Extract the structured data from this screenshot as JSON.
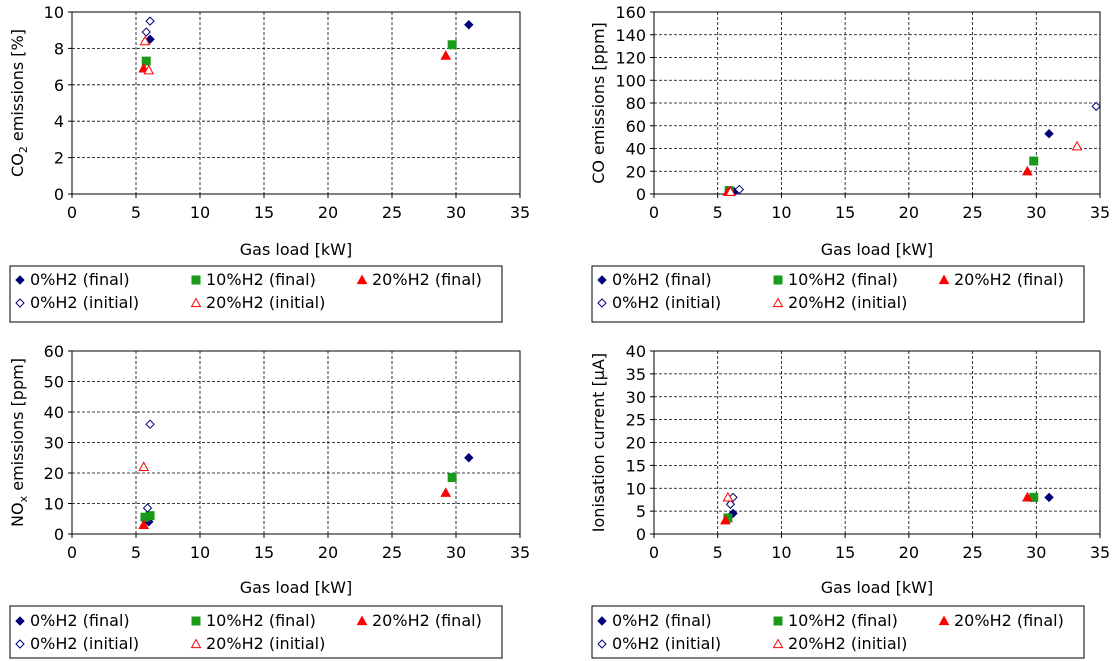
{
  "chart_data": [
    {
      "type": "scatter",
      "title": "",
      "xlabel": "Gas load [kW]",
      "ylabel_parts": [
        [
          "CO",
          ""
        ],
        [
          "2",
          "sub"
        ],
        [
          " emissions [%]",
          ""
        ]
      ],
      "xlim": [
        0,
        35
      ],
      "ylim": [
        0,
        10
      ],
      "xticks": [
        0,
        5,
        10,
        15,
        20,
        25,
        30,
        35
      ],
      "yticks": [
        0,
        2,
        4,
        6,
        8,
        10
      ],
      "grid": true,
      "legend_position": "bottom",
      "series": [
        {
          "name": "0%H2 (final)",
          "marker": "diamond",
          "filled": true,
          "color": "#00007a",
          "points": [
            [
              6.1,
              8.5
            ],
            [
              31.0,
              9.3
            ]
          ]
        },
        {
          "name": "10%H2 (final)",
          "marker": "square",
          "filled": true,
          "color": "#1a9a1a",
          "points": [
            [
              5.8,
              7.3
            ],
            [
              29.7,
              8.2
            ]
          ]
        },
        {
          "name": "20%H2 (final)",
          "marker": "triangle",
          "filled": true,
          "color": "#ff0000",
          "points": [
            [
              5.6,
              6.9
            ],
            [
              29.2,
              7.6
            ]
          ]
        },
        {
          "name": "0%H2 (initial)",
          "marker": "diamond",
          "filled": false,
          "color": "#00007a",
          "points": [
            [
              5.8,
              8.9
            ],
            [
              6.1,
              9.5
            ]
          ]
        },
        {
          "name": "20%H2 (initial)",
          "marker": "triangle",
          "filled": false,
          "color": "#ff0000",
          "points": [
            [
              5.7,
              8.4
            ],
            [
              6.0,
              6.8
            ]
          ]
        }
      ]
    },
    {
      "type": "scatter",
      "title": "",
      "xlabel": "Gas load [kW]",
      "ylabel_parts": [
        [
          "CO emissions [ppm]",
          ""
        ]
      ],
      "xlim": [
        0,
        35
      ],
      "ylim": [
        0,
        160
      ],
      "xticks": [
        0,
        5,
        10,
        15,
        20,
        25,
        30,
        35
      ],
      "yticks": [
        0,
        20,
        40,
        60,
        80,
        100,
        120,
        140,
        160
      ],
      "grid": true,
      "legend_position": "bottom",
      "series": [
        {
          "name": "0%H2 (final)",
          "marker": "diamond",
          "filled": true,
          "color": "#00007a",
          "points": [
            [
              6.3,
              2
            ],
            [
              31.0,
              53
            ]
          ]
        },
        {
          "name": "10%H2 (final)",
          "marker": "square",
          "filled": true,
          "color": "#1a9a1a",
          "points": [
            [
              5.9,
              3
            ],
            [
              29.8,
              29
            ]
          ]
        },
        {
          "name": "20%H2 (final)",
          "marker": "triangle",
          "filled": true,
          "color": "#ff0000",
          "points": [
            [
              5.8,
              2
            ],
            [
              29.3,
              20
            ]
          ]
        },
        {
          "name": "0%H2 (initial)",
          "marker": "diamond",
          "filled": false,
          "color": "#00007a",
          "points": [
            [
              6.7,
              4
            ],
            [
              34.7,
              77
            ]
          ]
        },
        {
          "name": "20%H2 (initial)",
          "marker": "triangle",
          "filled": false,
          "color": "#ff0000",
          "points": [
            [
              6.0,
              2
            ],
            [
              33.2,
              42
            ]
          ]
        }
      ]
    },
    {
      "type": "scatter",
      "title": "",
      "xlabel": "Gas load [kW]",
      "ylabel_parts": [
        [
          "NO",
          ""
        ],
        [
          "x",
          "sub"
        ],
        [
          " emissions [ppm]",
          ""
        ]
      ],
      "xlim": [
        0,
        35
      ],
      "ylim": [
        0,
        60
      ],
      "xticks": [
        0,
        5,
        10,
        15,
        20,
        25,
        30,
        35
      ],
      "yticks": [
        0,
        10,
        20,
        30,
        40,
        50,
        60
      ],
      "grid": true,
      "legend_position": "bottom",
      "series": [
        {
          "name": "0%H2 (final)",
          "marker": "diamond",
          "filled": true,
          "color": "#00007a",
          "points": [
            [
              6.0,
              4
            ],
            [
              31.0,
              25
            ]
          ]
        },
        {
          "name": "10%H2 (final)",
          "marker": "square",
          "filled": true,
          "color": "#1a9a1a",
          "points": [
            [
              5.7,
              5.5
            ],
            [
              6.1,
              6
            ],
            [
              29.7,
              18.5
            ]
          ]
        },
        {
          "name": "20%H2 (final)",
          "marker": "triangle",
          "filled": true,
          "color": "#ff0000",
          "points": [
            [
              5.6,
              3
            ],
            [
              29.2,
              13.5
            ]
          ]
        },
        {
          "name": "0%H2 (initial)",
          "marker": "diamond",
          "filled": false,
          "color": "#00007a",
          "points": [
            [
              5.9,
              8.5
            ],
            [
              6.1,
              36
            ]
          ]
        },
        {
          "name": "20%H2 (initial)",
          "marker": "triangle",
          "filled": false,
          "color": "#ff0000",
          "points": [
            [
              5.6,
              22
            ]
          ]
        }
      ]
    },
    {
      "type": "scatter",
      "title": "",
      "xlabel": "Gas load [kW]",
      "ylabel_parts": [
        [
          "Ionisation current [μA]",
          ""
        ]
      ],
      "xlim": [
        0,
        35
      ],
      "ylim": [
        0,
        40
      ],
      "xticks": [
        0,
        5,
        10,
        15,
        20,
        25,
        30,
        35
      ],
      "yticks": [
        0,
        5,
        10,
        15,
        20,
        25,
        30,
        35,
        40
      ],
      "grid": true,
      "legend_position": "bottom",
      "series": [
        {
          "name": "0%H2 (final)",
          "marker": "diamond",
          "filled": true,
          "color": "#00007a",
          "points": [
            [
              6.2,
              4.5
            ],
            [
              31.0,
              8
            ]
          ]
        },
        {
          "name": "10%H2 (final)",
          "marker": "square",
          "filled": true,
          "color": "#1a9a1a",
          "points": [
            [
              5.8,
              3.5
            ],
            [
              29.8,
              8
            ]
          ]
        },
        {
          "name": "20%H2 (final)",
          "marker": "triangle",
          "filled": true,
          "color": "#ff0000",
          "points": [
            [
              5.6,
              3
            ],
            [
              29.3,
              8
            ]
          ]
        },
        {
          "name": "0%H2 (initial)",
          "marker": "diamond",
          "filled": false,
          "color": "#00007a",
          "points": [
            [
              6.0,
              6.5
            ],
            [
              6.2,
              8
            ]
          ]
        },
        {
          "name": "20%H2 (initial)",
          "marker": "triangle",
          "filled": false,
          "color": "#ff0000",
          "points": [
            [
              5.8,
              8
            ]
          ]
        }
      ]
    }
  ]
}
